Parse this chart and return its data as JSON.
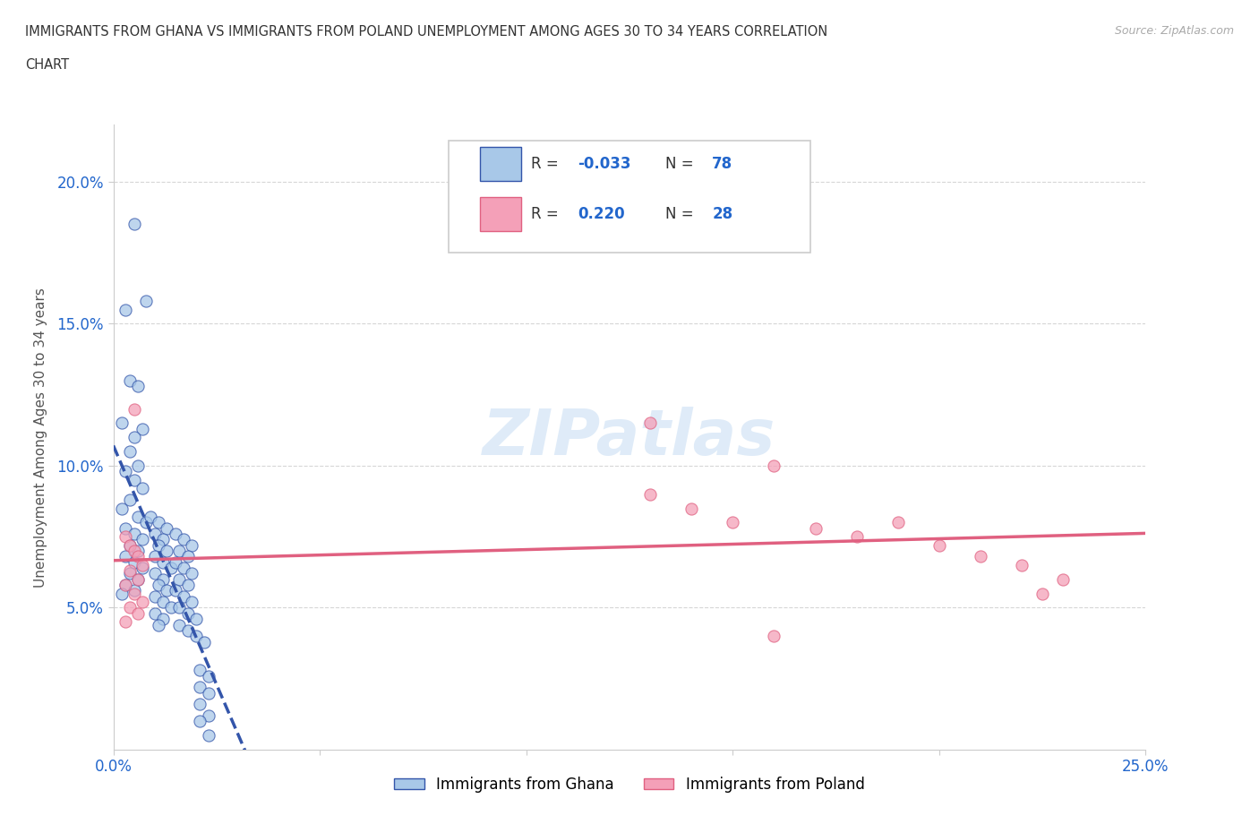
{
  "title_line1": "IMMIGRANTS FROM GHANA VS IMMIGRANTS FROM POLAND UNEMPLOYMENT AMONG AGES 30 TO 34 YEARS CORRELATION",
  "title_line2": "CHART",
  "source_text": "Source: ZipAtlas.com",
  "ylabel": "Unemployment Among Ages 30 to 34 years",
  "xlim": [
    0.0,
    0.25
  ],
  "ylim": [
    0.0,
    0.22
  ],
  "ghana_R": "-0.033",
  "ghana_N": "78",
  "poland_R": "0.220",
  "poland_N": "28",
  "ghana_color": "#a8c8e8",
  "poland_color": "#f4a0b8",
  "ghana_line_color": "#3355aa",
  "poland_line_color": "#e06080",
  "watermark": "ZIPatlas",
  "ghana_scatter_x": [
    0.005,
    0.008,
    0.003,
    0.004,
    0.006,
    0.002,
    0.007,
    0.005,
    0.004,
    0.006,
    0.003,
    0.005,
    0.007,
    0.004,
    0.002,
    0.006,
    0.008,
    0.003,
    0.005,
    0.007,
    0.004,
    0.006,
    0.003,
    0.005,
    0.007,
    0.004,
    0.006,
    0.003,
    0.005,
    0.002,
    0.009,
    0.011,
    0.013,
    0.01,
    0.012,
    0.011,
    0.013,
    0.01,
    0.012,
    0.014,
    0.01,
    0.012,
    0.011,
    0.013,
    0.01,
    0.012,
    0.014,
    0.01,
    0.012,
    0.011,
    0.015,
    0.017,
    0.019,
    0.016,
    0.018,
    0.015,
    0.017,
    0.019,
    0.016,
    0.018,
    0.015,
    0.017,
    0.019,
    0.016,
    0.018,
    0.02,
    0.016,
    0.018,
    0.02,
    0.022,
    0.021,
    0.023,
    0.021,
    0.023,
    0.021,
    0.023,
    0.021,
    0.023
  ],
  "ghana_scatter_y": [
    0.185,
    0.158,
    0.155,
    0.13,
    0.128,
    0.115,
    0.113,
    0.11,
    0.105,
    0.1,
    0.098,
    0.095,
    0.092,
    0.088,
    0.085,
    0.082,
    0.08,
    0.078,
    0.076,
    0.074,
    0.072,
    0.07,
    0.068,
    0.066,
    0.064,
    0.062,
    0.06,
    0.058,
    0.056,
    0.055,
    0.082,
    0.08,
    0.078,
    0.076,
    0.074,
    0.072,
    0.07,
    0.068,
    0.066,
    0.064,
    0.062,
    0.06,
    0.058,
    0.056,
    0.054,
    0.052,
    0.05,
    0.048,
    0.046,
    0.044,
    0.076,
    0.074,
    0.072,
    0.07,
    0.068,
    0.066,
    0.064,
    0.062,
    0.06,
    0.058,
    0.056,
    0.054,
    0.052,
    0.05,
    0.048,
    0.046,
    0.044,
    0.042,
    0.04,
    0.038,
    0.028,
    0.026,
    0.022,
    0.02,
    0.016,
    0.012,
    0.01,
    0.005
  ],
  "poland_scatter_x": [
    0.003,
    0.004,
    0.005,
    0.006,
    0.007,
    0.004,
    0.006,
    0.003,
    0.005,
    0.007,
    0.004,
    0.006,
    0.003,
    0.005,
    0.13,
    0.14,
    0.15,
    0.16,
    0.17,
    0.18,
    0.19,
    0.2,
    0.21,
    0.22,
    0.225,
    0.23,
    0.13,
    0.16
  ],
  "poland_scatter_y": [
    0.075,
    0.072,
    0.07,
    0.068,
    0.065,
    0.063,
    0.06,
    0.058,
    0.055,
    0.052,
    0.05,
    0.048,
    0.045,
    0.12,
    0.115,
    0.085,
    0.08,
    0.1,
    0.078,
    0.075,
    0.08,
    0.072,
    0.068,
    0.065,
    0.055,
    0.06,
    0.09,
    0.04
  ]
}
